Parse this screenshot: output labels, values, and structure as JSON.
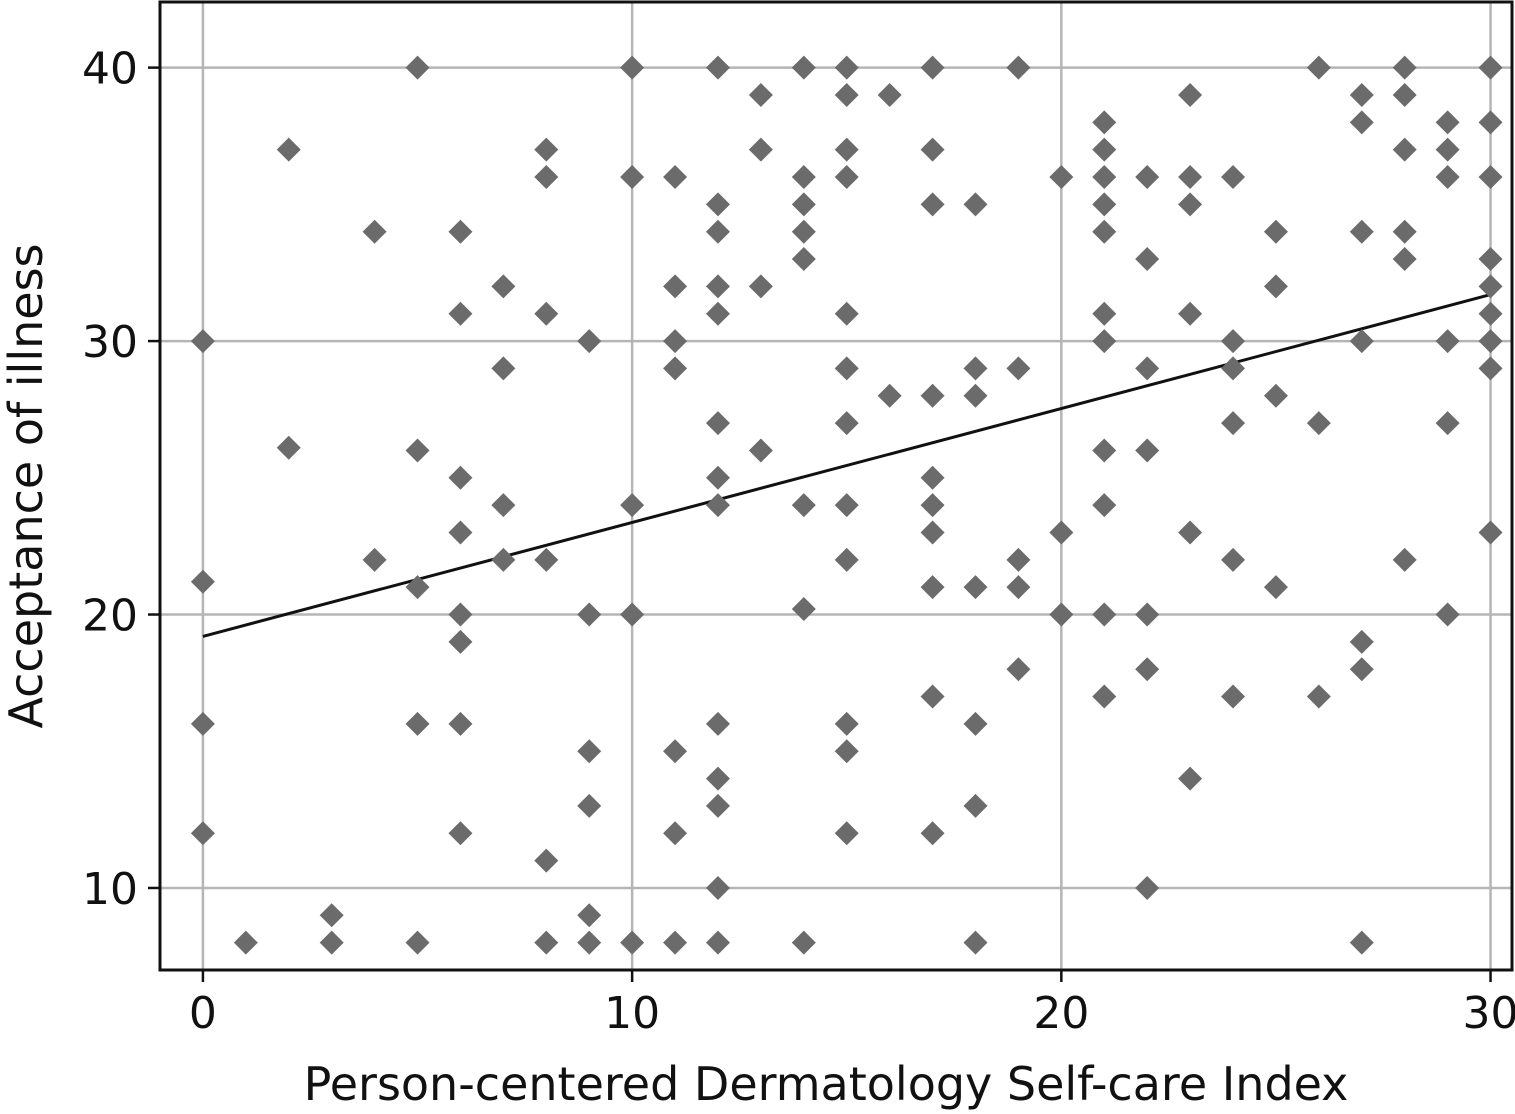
{
  "chart_data": {
    "type": "scatter",
    "title": "",
    "xlabel": "Person-centered Dermatology Self-care Index",
    "ylabel": "Acceptance of illness",
    "xlim": [
      -1,
      30.5
    ],
    "ylim": [
      7,
      42.4
    ],
    "xticks": [
      0,
      10,
      20,
      30
    ],
    "yticks": [
      10,
      20,
      30,
      40
    ],
    "xtick_labels": [
      "0",
      "10",
      "20",
      "30"
    ],
    "ytick_labels": [
      "10",
      "20",
      "30",
      "40"
    ],
    "grid": true,
    "marker": "diamond",
    "marker_color": "#6b6b6b",
    "line_color": "#111111",
    "grid_color": "#b5b5b5",
    "fit_line": {
      "x": [
        0,
        30
      ],
      "y": [
        19.2,
        31.7
      ]
    },
    "points": [
      [
        0,
        30
      ],
      [
        0,
        21.2
      ],
      [
        0,
        16
      ],
      [
        0,
        12
      ],
      [
        1,
        8
      ],
      [
        2,
        37
      ],
      [
        2,
        26.1
      ],
      [
        3,
        9
      ],
      [
        3,
        8
      ],
      [
        4,
        34
      ],
      [
        4,
        22
      ],
      [
        5,
        40
      ],
      [
        5,
        26
      ],
      [
        5,
        21
      ],
      [
        5,
        16
      ],
      [
        5,
        8
      ],
      [
        6,
        34
      ],
      [
        6,
        31
      ],
      [
        6,
        25
      ],
      [
        6,
        23
      ],
      [
        6,
        20
      ],
      [
        6,
        19
      ],
      [
        6,
        16
      ],
      [
        6,
        12
      ],
      [
        7,
        32
      ],
      [
        7,
        29
      ],
      [
        7,
        24
      ],
      [
        7,
        22
      ],
      [
        8,
        37
      ],
      [
        8,
        36
      ],
      [
        8,
        31
      ],
      [
        8,
        22
      ],
      [
        8,
        11
      ],
      [
        8,
        8
      ],
      [
        9,
        30
      ],
      [
        9,
        20
      ],
      [
        9,
        15
      ],
      [
        9,
        13
      ],
      [
        9,
        9
      ],
      [
        9,
        8
      ],
      [
        10,
        40
      ],
      [
        10,
        36
      ],
      [
        10,
        24
      ],
      [
        10,
        20
      ],
      [
        10,
        8
      ],
      [
        11,
        36
      ],
      [
        11,
        32
      ],
      [
        11,
        30
      ],
      [
        11,
        29
      ],
      [
        11,
        15
      ],
      [
        11,
        12
      ],
      [
        11,
        8
      ],
      [
        12,
        40
      ],
      [
        12,
        35
      ],
      [
        12,
        34
      ],
      [
        12,
        32
      ],
      [
        12,
        31
      ],
      [
        12,
        27
      ],
      [
        12,
        25
      ],
      [
        12,
        24
      ],
      [
        12,
        16
      ],
      [
        12,
        14
      ],
      [
        12,
        13
      ],
      [
        12,
        10
      ],
      [
        12,
        8
      ],
      [
        13,
        39
      ],
      [
        13,
        37
      ],
      [
        13,
        32
      ],
      [
        13,
        26
      ],
      [
        14,
        40
      ],
      [
        14,
        36
      ],
      [
        14,
        35
      ],
      [
        14,
        34
      ],
      [
        14,
        33
      ],
      [
        14,
        24
      ],
      [
        14,
        20.2
      ],
      [
        14,
        8
      ],
      [
        15,
        40
      ],
      [
        15,
        39
      ],
      [
        15,
        37
      ],
      [
        15,
        36
      ],
      [
        15,
        31
      ],
      [
        15,
        29
      ],
      [
        15,
        27
      ],
      [
        15,
        24
      ],
      [
        15,
        22
      ],
      [
        15,
        16
      ],
      [
        15,
        15
      ],
      [
        15,
        12
      ],
      [
        16,
        39
      ],
      [
        16,
        28
      ],
      [
        17,
        40
      ],
      [
        17,
        37
      ],
      [
        17,
        35
      ],
      [
        17,
        28
      ],
      [
        17,
        25
      ],
      [
        17,
        24
      ],
      [
        17,
        23
      ],
      [
        17,
        21
      ],
      [
        17,
        17
      ],
      [
        17,
        12
      ],
      [
        18,
        35
      ],
      [
        18,
        29
      ],
      [
        18,
        28
      ],
      [
        18,
        21
      ],
      [
        18,
        16
      ],
      [
        18,
        13
      ],
      [
        18,
        8
      ],
      [
        19,
        40
      ],
      [
        19,
        29
      ],
      [
        19,
        22
      ],
      [
        19,
        21
      ],
      [
        19,
        18
      ],
      [
        20,
        36
      ],
      [
        20,
        23
      ],
      [
        20,
        20
      ],
      [
        21,
        38
      ],
      [
        21,
        37
      ],
      [
        21,
        36
      ],
      [
        21,
        35
      ],
      [
        21,
        34
      ],
      [
        21,
        31
      ],
      [
        21,
        30
      ],
      [
        21,
        26
      ],
      [
        21,
        24
      ],
      [
        21,
        20
      ],
      [
        21,
        17
      ],
      [
        22,
        36
      ],
      [
        22,
        33
      ],
      [
        22,
        29
      ],
      [
        22,
        26
      ],
      [
        22,
        20
      ],
      [
        22,
        18
      ],
      [
        22,
        10
      ],
      [
        23,
        39
      ],
      [
        23,
        36
      ],
      [
        23,
        35
      ],
      [
        23,
        31
      ],
      [
        23,
        23
      ],
      [
        23,
        14
      ],
      [
        24,
        36
      ],
      [
        24,
        30
      ],
      [
        24,
        29
      ],
      [
        24,
        27
      ],
      [
        24,
        22
      ],
      [
        24,
        17
      ],
      [
        25,
        34
      ],
      [
        25,
        32
      ],
      [
        25,
        28
      ],
      [
        25,
        21
      ],
      [
        26,
        40
      ],
      [
        26,
        27
      ],
      [
        26,
        17
      ],
      [
        27,
        39
      ],
      [
        27,
        38
      ],
      [
        27,
        34
      ],
      [
        27,
        30
      ],
      [
        27,
        19
      ],
      [
        27,
        18
      ],
      [
        27,
        8
      ],
      [
        28,
        40
      ],
      [
        28,
        39
      ],
      [
        28,
        37
      ],
      [
        28,
        34
      ],
      [
        28,
        33
      ],
      [
        28,
        22
      ],
      [
        29,
        38
      ],
      [
        29,
        37
      ],
      [
        29,
        36
      ],
      [
        29,
        30
      ],
      [
        29,
        27
      ],
      [
        29,
        20
      ],
      [
        30,
        40
      ],
      [
        30,
        38
      ],
      [
        30,
        36
      ],
      [
        30,
        33
      ],
      [
        30,
        32
      ],
      [
        30,
        31
      ],
      [
        30,
        30
      ],
      [
        30,
        29
      ],
      [
        30,
        23
      ]
    ]
  }
}
